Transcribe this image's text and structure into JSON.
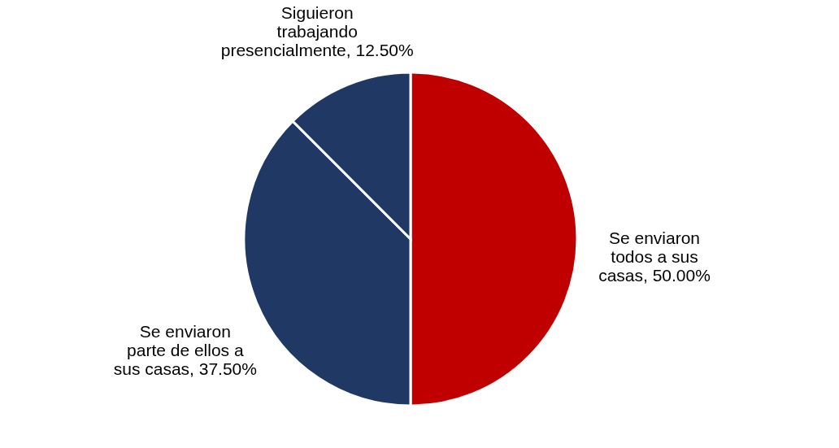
{
  "chart_data": {
    "type": "pie",
    "categories": [
      "Se enviaron todos a sus casas",
      "Se enviaron parte de ellos a sus casas",
      "Siguieron trabajando presencialmente"
    ],
    "values": [
      50.0,
      37.5,
      12.5
    ],
    "colors": [
      "#c00000",
      "#203864",
      "#203864"
    ],
    "value_labels": [
      "50.00%",
      "37.50%",
      "12.50%"
    ],
    "legend": false
  }
}
